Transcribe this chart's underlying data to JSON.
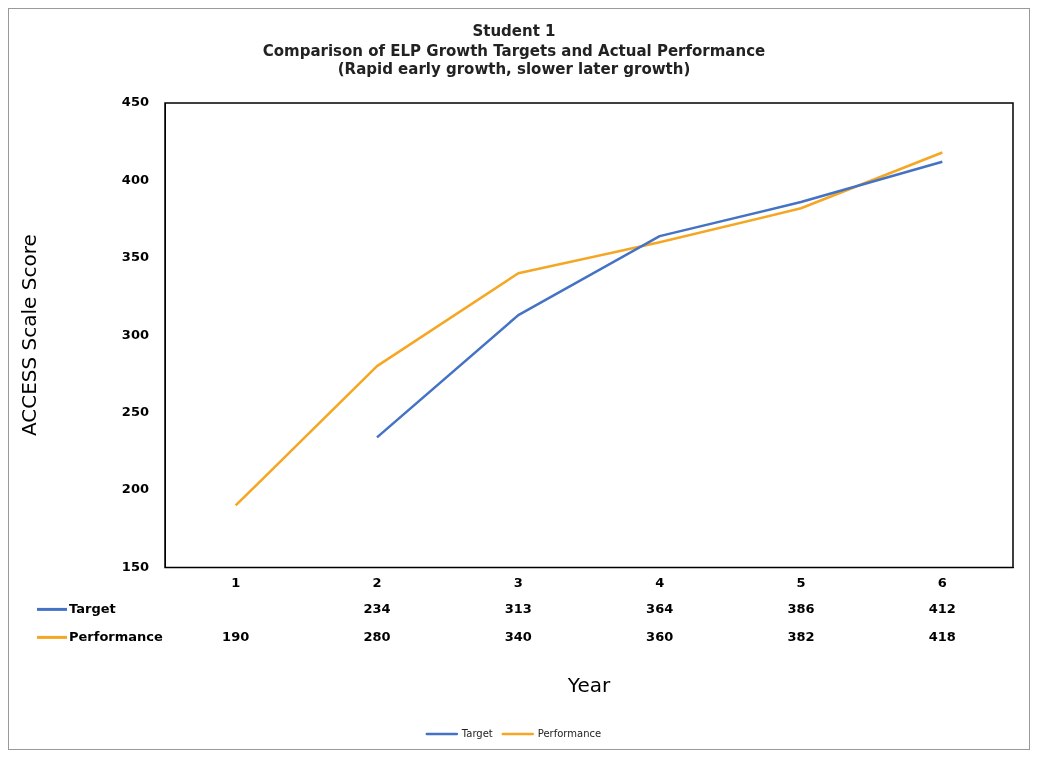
{
  "chart_data": {
    "type": "line",
    "title": "Student 1",
    "subtitle": "Comparison of ELP Growth Targets and Actual Performance\n(Rapid early growth, slower later growth)",
    "xlabel": "Year",
    "ylabel": "ACCESS Scale Score",
    "categories": [
      "1",
      "2",
      "3",
      "4",
      "5",
      "6"
    ],
    "series": [
      {
        "name": "Target",
        "color": "#4472c4",
        "values": [
          null,
          234,
          313,
          364,
          386,
          412
        ]
      },
      {
        "name": "Performance",
        "color": "#f5a623",
        "values": [
          190,
          280,
          340,
          360,
          382,
          418
        ]
      }
    ],
    "ylim": [
      150,
      450
    ],
    "yticks": [
      150,
      200,
      250,
      300,
      350,
      400,
      450
    ],
    "grid": false,
    "legend": "bottom",
    "data_labels": true,
    "marker": "none",
    "line_style": "solid"
  }
}
